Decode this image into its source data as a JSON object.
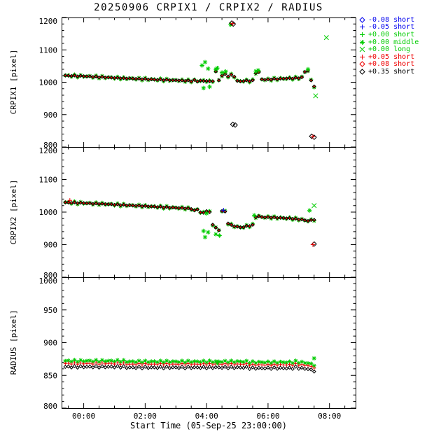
{
  "colors": {
    "blue": "#0000ee",
    "green": "#00cc00",
    "red": "#ee0000",
    "black": "#000000"
  },
  "legend": [
    {
      "marker": "diamond",
      "color": "blue",
      "label": "-0.08 short"
    },
    {
      "marker": "plus",
      "color": "blue",
      "label": "-0.05 short"
    },
    {
      "marker": "plus",
      "color": "green",
      "label": "+0.00 short"
    },
    {
      "marker": "asterisk",
      "color": "green",
      "label": "+0.00 middle"
    },
    {
      "marker": "x",
      "color": "green",
      "label": "+0.00 long"
    },
    {
      "marker": "plus",
      "color": "red",
      "label": "+0.05 short"
    },
    {
      "marker": "diamond",
      "color": "red",
      "label": "+0.08 short"
    },
    {
      "marker": "diamond",
      "color": "black",
      "label": "+0.35 short"
    }
  ],
  "chart_data": {
    "type": "scatter",
    "title": "20250906 CRPIX1 / CRPIX2 / RADIUS",
    "xlabel": "Start Time (05-Sep-25 23:00:00)",
    "xlim": [
      -0.72,
      8.85
    ],
    "x_ticks": [
      {
        "t": 0,
        "label": "00:00"
      },
      {
        "t": 2,
        "label": "02:00"
      },
      {
        "t": 4,
        "label": "04:00"
      },
      {
        "t": 6,
        "label": "06:00"
      },
      {
        "t": 8,
        "label": "08:00"
      }
    ],
    "x_minor_step": 0.5,
    "base_x": {
      "x0": -0.6,
      "dx": 0.1
    },
    "panels": [
      {
        "ylabel": "CRPIX1 [pixel]",
        "ylim": [
          800,
          1200
        ],
        "yticks": [
          800,
          900,
          1000,
          1100,
          1200
        ],
        "yminor": 20,
        "base_y": [
          1021,
          1020,
          1020,
          1020,
          1019,
          1019,
          1019,
          1018,
          1018,
          1017,
          1017,
          1016,
          1016,
          1015,
          1015,
          1014,
          1014,
          1013,
          1013,
          1012,
          1012,
          1012,
          1011,
          1011,
          1010,
          1010,
          1010,
          1009,
          1009,
          1008,
          1008,
          1008,
          1007,
          1007,
          1007,
          1006,
          1006,
          1006,
          1005,
          1005,
          1005,
          1003,
          1007,
          1002,
          1006,
          1003,
          1005,
          1002,
          1004,
          1033,
          1006,
          1021,
          1024,
          1019,
          1022,
          1018,
          1004,
          1003,
          1004,
          1005,
          1004,
          1005,
          1029,
          1031,
          1009,
          1008,
          1008,
          1009,
          1010,
          1010,
          1011,
          1011,
          1012,
          1012,
          1012,
          1013,
          1013,
          1015,
          1032,
          1036,
          1005,
          988
        ],
        "series": [
          {
            "color": "green",
            "marker": "asterisk",
            "dy": 0,
            "spread": 4,
            "size": 3
          },
          {
            "color": "red",
            "marker": "plus",
            "dy": 0,
            "spread": 2,
            "size": 2.6
          },
          {
            "color": "black",
            "marker": "diamond",
            "dy": 0,
            "spread": 1,
            "size": 2.2
          }
        ],
        "extras": [
          {
            "x": 3.85,
            "y": 1052,
            "color": "green",
            "marker": "asterisk"
          },
          {
            "x": 3.95,
            "y": 1062,
            "color": "green",
            "marker": "asterisk"
          },
          {
            "x": 4.05,
            "y": 1042,
            "color": "green",
            "marker": "asterisk"
          },
          {
            "x": 3.9,
            "y": 982,
            "color": "green",
            "marker": "asterisk"
          },
          {
            "x": 4.1,
            "y": 986,
            "color": "green",
            "marker": "asterisk"
          },
          {
            "x": 4.3,
            "y": 1040,
            "color": "green",
            "marker": "asterisk"
          },
          {
            "x": 4.35,
            "y": 1044,
            "color": "green",
            "marker": "asterisk"
          },
          {
            "x": 4.5,
            "y": 1030,
            "color": "green",
            "marker": "asterisk"
          },
          {
            "x": 4.62,
            "y": 1033,
            "color": "green",
            "marker": "asterisk"
          },
          {
            "x": 5.6,
            "y": 1034,
            "color": "green",
            "marker": "asterisk"
          },
          {
            "x": 5.68,
            "y": 1037,
            "color": "green",
            "marker": "asterisk"
          },
          {
            "x": 7.3,
            "y": 1040,
            "color": "green",
            "marker": "asterisk"
          },
          {
            "x": 4.78,
            "y": 1178,
            "color": "green",
            "marker": "asterisk"
          },
          {
            "x": 7.9,
            "y": 1138,
            "color": "green",
            "marker": "x"
          },
          {
            "x": 7.55,
            "y": 958,
            "color": "green",
            "marker": "x"
          },
          {
            "x": 4.82,
            "y": 1183,
            "color": "black",
            "marker": "diamond"
          },
          {
            "x": 4.87,
            "y": 1180,
            "color": "black",
            "marker": "diamond"
          },
          {
            "x": 4.85,
            "y": 870,
            "color": "black",
            "marker": "diamond"
          },
          {
            "x": 4.93,
            "y": 868,
            "color": "black",
            "marker": "diamond"
          },
          {
            "x": 7.42,
            "y": 833,
            "color": "black",
            "marker": "diamond"
          },
          {
            "x": 7.5,
            "y": 830,
            "color": "black",
            "marker": "diamond"
          },
          {
            "x": 4.84,
            "y": 1181,
            "color": "red",
            "marker": "plus"
          },
          {
            "x": 7.46,
            "y": 832,
            "color": "red",
            "marker": "plus"
          }
        ]
      },
      {
        "ylabel": "CRPIX2 [pixel]",
        "ylim": [
          800,
          1200
        ],
        "yticks": [
          800,
          900,
          1000,
          1100,
          1200
        ],
        "yminor": 20,
        "base_y": [
          1030,
          1029,
          1029,
          1029,
          1028,
          1028,
          1028,
          1027,
          1027,
          1026,
          1026,
          1026,
          1025,
          1025,
          1024,
          1024,
          1023,
          1023,
          1022,
          1022,
          1021,
          1021,
          1020,
          1020,
          1019,
          1019,
          1018,
          1018,
          1017,
          1017,
          1016,
          1016,
          1015,
          1015,
          1014,
          1014,
          1013,
          1013,
          1012,
          1012,
          1011,
          1010,
          1005,
          1008,
          1000,
          997,
          1004,
          999,
          962,
          952,
          944,
          1004,
          1001,
          966,
          960,
          957,
          955,
          953,
          954,
          957,
          958,
          960,
          985,
          987,
          985,
          984,
          984,
          984,
          983,
          983,
          982,
          982,
          981,
          981,
          980,
          979,
          978,
          977,
          975,
          973,
          975,
          977
        ],
        "series": [
          {
            "color": "green",
            "marker": "asterisk",
            "dy": 0,
            "spread": 4,
            "size": 3
          },
          {
            "color": "red",
            "marker": "plus",
            "dy": 0,
            "spread": 2,
            "size": 2.6
          },
          {
            "color": "black",
            "marker": "diamond",
            "dy": 0,
            "spread": 1,
            "size": 2.2
          }
        ],
        "extras": [
          {
            "x": 3.9,
            "y": 942,
            "color": "green",
            "marker": "asterisk"
          },
          {
            "x": 3.95,
            "y": 923,
            "color": "green",
            "marker": "asterisk"
          },
          {
            "x": 4.05,
            "y": 938,
            "color": "green",
            "marker": "asterisk"
          },
          {
            "x": 4.0,
            "y": 996,
            "color": "green",
            "marker": "asterisk"
          },
          {
            "x": 4.3,
            "y": 932,
            "color": "green",
            "marker": "asterisk"
          },
          {
            "x": 4.42,
            "y": 928,
            "color": "green",
            "marker": "asterisk"
          },
          {
            "x": 5.55,
            "y": 990,
            "color": "green",
            "marker": "asterisk"
          },
          {
            "x": 7.35,
            "y": 1005,
            "color": "green",
            "marker": "asterisk"
          },
          {
            "x": 7.5,
            "y": 1020,
            "color": "green",
            "marker": "x"
          },
          {
            "x": 7.5,
            "y": 902,
            "color": "black",
            "marker": "diamond"
          },
          {
            "x": 7.46,
            "y": 900,
            "color": "red",
            "marker": "plus"
          },
          {
            "x": -0.45,
            "y": 1036,
            "color": "red",
            "marker": "plus"
          },
          {
            "x": 4.55,
            "y": 1006,
            "color": "blue",
            "marker": "plus"
          }
        ]
      },
      {
        "ylabel": "RADIUS [pixel]",
        "ylim": [
          800,
          1000
        ],
        "yticks": [
          800,
          850,
          900,
          950,
          1000
        ],
        "yminor": 10,
        "base_y": [
          863,
          863,
          863,
          863,
          863,
          863,
          863,
          863,
          863,
          863,
          863,
          863,
          863,
          863,
          863,
          863,
          863,
          863,
          863,
          863,
          862,
          862,
          862,
          862,
          862,
          862,
          862,
          862,
          862,
          862,
          862,
          862,
          862,
          862,
          862,
          862,
          862,
          862,
          862,
          862,
          862,
          862,
          862,
          862,
          862,
          862,
          862,
          862,
          862,
          862,
          862,
          862,
          862,
          862,
          862,
          862,
          862,
          862,
          862,
          862,
          861,
          861,
          861,
          861,
          861,
          861,
          861,
          861,
          861,
          861,
          861,
          861,
          861,
          861,
          861,
          862,
          861,
          861,
          860,
          860,
          858,
          857
        ],
        "series": [
          {
            "color": "green",
            "marker": "asterisk",
            "dy": 9,
            "spread": 1.5,
            "size": 3
          },
          {
            "color": "red",
            "marker": "plus",
            "dy": 5,
            "spread": 1,
            "size": 2.6
          },
          {
            "color": "black",
            "marker": "diamond",
            "dy": 0,
            "spread": 1.2,
            "size": 2.2
          }
        ],
        "extras": [
          {
            "x": 7.5,
            "y": 876,
            "color": "green",
            "marker": "asterisk"
          },
          {
            "x": 4.35,
            "y": 869,
            "color": "green",
            "marker": "asterisk"
          }
        ]
      }
    ]
  }
}
